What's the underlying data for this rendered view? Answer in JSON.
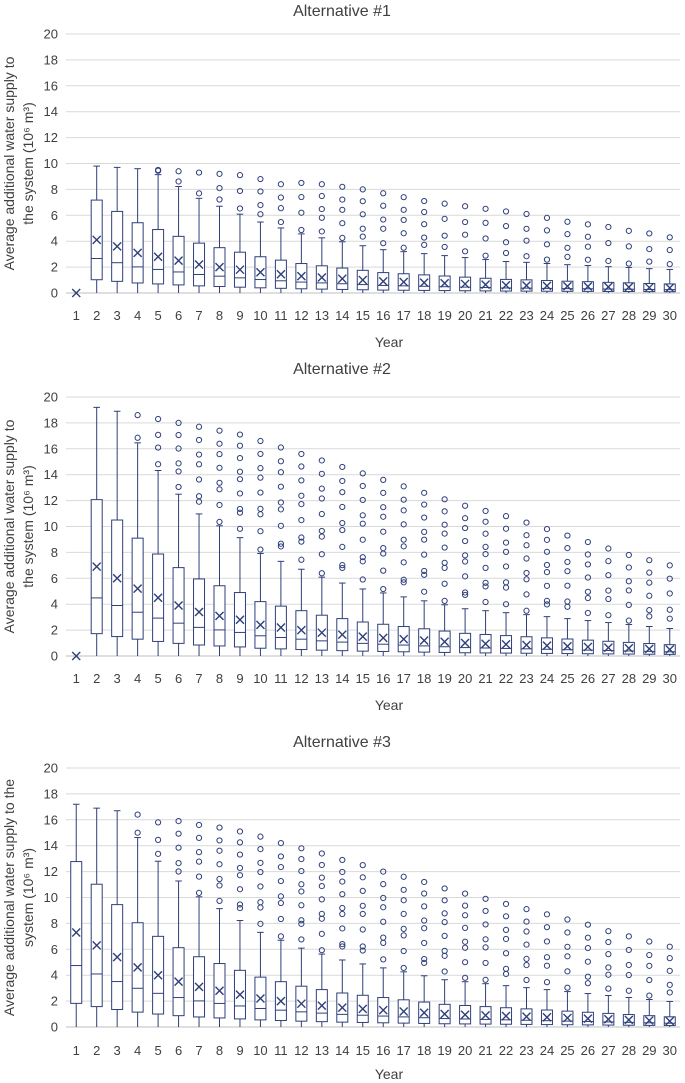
{
  "colors": {
    "series": "#2f3f7a",
    "grid": "#d9d9d9",
    "text": "#404040"
  },
  "chart_data": [
    {
      "type": "box",
      "title": "Alternative #1",
      "xlabel": "Year",
      "ylabel_line1": "Average additional water supply to",
      "ylabel_line2": "the system (10⁶ m³)",
      "ylim": [
        0,
        20
      ],
      "yticks": [
        "0",
        "2",
        "4",
        "6",
        "8",
        "10",
        "12",
        "14",
        "16",
        "18",
        "20"
      ],
      "categories": [
        "1",
        "2",
        "3",
        "4",
        "5",
        "6",
        "7",
        "8",
        "9",
        "10",
        "11",
        "12",
        "13",
        "14",
        "15",
        "16",
        "17",
        "18",
        "19",
        "20",
        "21",
        "22",
        "23",
        "24",
        "25",
        "26",
        "27",
        "28",
        "29",
        "30"
      ],
      "series": [
        {
          "name": "Additional water supply",
          "peak": [
            0,
            9.8,
            9.7,
            9.6,
            9.5,
            9.4,
            9.3,
            9.2,
            9.1,
            8.8,
            8.4,
            8.5,
            8.4,
            8.2,
            8.0,
            7.7,
            7.4,
            7.1,
            6.9,
            6.7,
            6.5,
            6.3,
            6.1,
            5.8,
            5.5,
            5.3,
            5.1,
            4.8,
            4.6,
            4.3
          ],
          "mean": [
            0,
            4.1,
            3.6,
            3.1,
            2.8,
            2.5,
            2.2,
            2.0,
            1.8,
            1.6,
            1.45,
            1.3,
            1.2,
            1.1,
            1.0,
            0.9,
            0.85,
            0.8,
            0.75,
            0.7,
            0.65,
            0.6,
            0.58,
            0.55,
            0.52,
            0.5,
            0.47,
            0.45,
            0.42,
            0.4
          ]
        }
      ]
    },
    {
      "type": "box",
      "title": "Alternative #2",
      "xlabel": "Year",
      "ylabel_line1": "Average additional water supply to",
      "ylabel_line2": "the system (10⁶ m³)",
      "ylim": [
        0,
        20
      ],
      "yticks": [
        "0",
        "2",
        "4",
        "6",
        "8",
        "10",
        "12",
        "14",
        "16",
        "18",
        "20"
      ],
      "categories": [
        "1",
        "2",
        "3",
        "4",
        "5",
        "6",
        "7",
        "8",
        "9",
        "10",
        "11",
        "12",
        "13",
        "14",
        "15",
        "16",
        "17",
        "18",
        "19",
        "20",
        "21",
        "22",
        "23",
        "24",
        "25",
        "26",
        "27",
        "28",
        "29",
        "30"
      ],
      "series": [
        {
          "name": "Additional water supply",
          "peak": [
            0,
            19.2,
            18.9,
            18.6,
            18.3,
            18.0,
            17.7,
            17.4,
            17.1,
            16.6,
            16.1,
            15.6,
            15.1,
            14.6,
            14.1,
            13.6,
            13.1,
            12.6,
            12.1,
            11.6,
            11.2,
            10.8,
            10.3,
            9.8,
            9.3,
            8.8,
            8.3,
            7.8,
            7.4,
            7.0
          ],
          "mean": [
            0,
            6.9,
            6.0,
            5.2,
            4.5,
            3.9,
            3.4,
            3.1,
            2.8,
            2.4,
            2.2,
            2.0,
            1.8,
            1.65,
            1.5,
            1.4,
            1.3,
            1.2,
            1.1,
            1.0,
            0.95,
            0.9,
            0.85,
            0.8,
            0.75,
            0.7,
            0.65,
            0.6,
            0.55,
            0.5
          ]
        }
      ]
    },
    {
      "type": "box",
      "title": "Alternative #3",
      "xlabel": "Year",
      "ylabel_line1": "Average additional water supply to the",
      "ylabel_line2": "system (10⁶ m³)",
      "ylim": [
        0,
        20
      ],
      "yticks": [
        "0",
        "2",
        "4",
        "6",
        "8",
        "10",
        "12",
        "14",
        "16",
        "18",
        "20"
      ],
      "categories": [
        "1",
        "2",
        "3",
        "4",
        "5",
        "6",
        "7",
        "8",
        "9",
        "10",
        "11",
        "12",
        "13",
        "14",
        "15",
        "16",
        "17",
        "18",
        "19",
        "20",
        "21",
        "22",
        "23",
        "24",
        "25",
        "26",
        "27",
        "28",
        "29",
        "30"
      ],
      "series": [
        {
          "name": "Additional water supply",
          "peak": [
            17.2,
            16.9,
            16.7,
            16.4,
            15.8,
            15.9,
            15.6,
            15.4,
            15.1,
            14.7,
            14.2,
            13.8,
            13.4,
            12.9,
            12.5,
            12.0,
            11.6,
            11.2,
            10.7,
            10.3,
            9.9,
            9.5,
            9.1,
            8.7,
            8.3,
            7.9,
            7.4,
            7.0,
            6.6,
            6.2
          ],
          "mean": [
            7.3,
            6.3,
            5.4,
            4.6,
            4.0,
            3.5,
            3.1,
            2.8,
            2.5,
            2.2,
            2.0,
            1.8,
            1.65,
            1.5,
            1.4,
            1.3,
            1.2,
            1.1,
            1.0,
            0.95,
            0.9,
            0.85,
            0.8,
            0.75,
            0.7,
            0.65,
            0.6,
            0.55,
            0.5,
            0.45
          ]
        }
      ]
    }
  ]
}
